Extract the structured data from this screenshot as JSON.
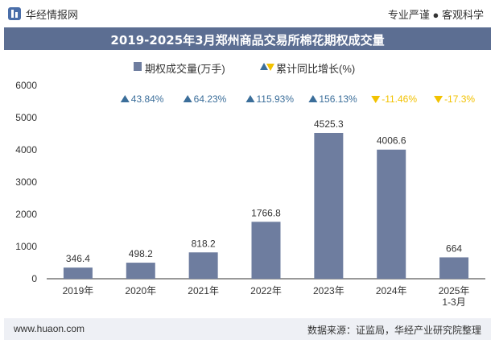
{
  "header": {
    "brand": "华经情报网",
    "tagline": "专业严谨 ● 客观科学"
  },
  "title": "2019-2025年3月郑州商品交易所棉花期权成交量",
  "legend": {
    "series_bar": "期权成交量(万手)",
    "series_growth": "累计同比增长(%)"
  },
  "footer": {
    "url": "www.huaon.com",
    "source": "数据来源：证监局，华经产业研究院整理"
  },
  "colors": {
    "bar": "#6e7d9f",
    "up_marker": "#3b6e9a",
    "up_text": "#3b6e9a",
    "down_marker": "#f2c200",
    "down_text": "#f2c200",
    "title_bg": "#5c6e92"
  },
  "chart_data": {
    "type": "bar",
    "categories": [
      "2019年",
      "2020年",
      "2021年",
      "2022年",
      "2023年",
      "2024年",
      "2025年\n1-3月"
    ],
    "series": [
      {
        "name": "期权成交量(万手)",
        "values": [
          346.4,
          498.2,
          818.2,
          1766.8,
          4525.3,
          4006.6,
          664
        ]
      },
      {
        "name": "累计同比增长(%)",
        "values": [
          null,
          43.84,
          64.23,
          115.93,
          156.13,
          -11.46,
          -17.3
        ],
        "labels": [
          "",
          "43.84%",
          "64.23%",
          "115.93%",
          "156.13%",
          "-11.46%",
          "-17.3%"
        ]
      }
    ],
    "bar_labels": [
      "346.4",
      "498.2",
      "818.2",
      "1766.8",
      "4525.3",
      "4006.6",
      "664"
    ],
    "ylim": [
      0,
      6000
    ],
    "yticks": [
      0,
      1000,
      2000,
      3000,
      4000,
      5000,
      6000
    ],
    "xlabel": "",
    "ylabel": "",
    "grid": false
  }
}
